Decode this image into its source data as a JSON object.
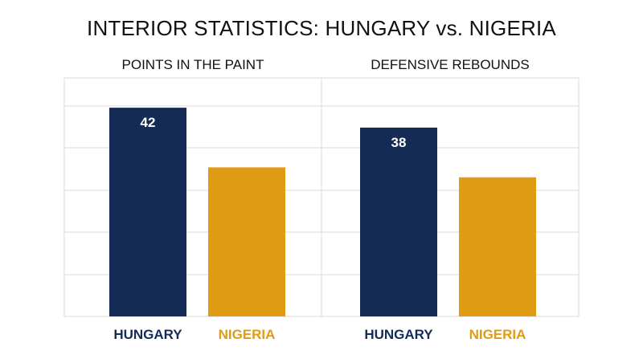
{
  "title": "INTERIOR STATISTICS: HUNGARY vs. NIGERIA",
  "colors": {
    "hungary": "#142c55",
    "nigeria": "#e09b14",
    "grid": "#d9d9d9"
  },
  "chart_data": [
    {
      "type": "bar",
      "title": "POINTS IN THE PAINT",
      "categories": [
        "HUNGARY",
        "NIGERIA"
      ],
      "values": [
        42,
        30
      ],
      "value_labels": [
        "42",
        ""
      ],
      "ylim": [
        0,
        48
      ],
      "grid": true
    },
    {
      "type": "bar",
      "title": "DEFENSIVE REBOUNDS",
      "categories": [
        "HUNGARY",
        "NIGERIA"
      ],
      "values": [
        38,
        28
      ],
      "value_labels": [
        "38",
        ""
      ],
      "ylim": [
        0,
        48
      ],
      "grid": true
    }
  ]
}
